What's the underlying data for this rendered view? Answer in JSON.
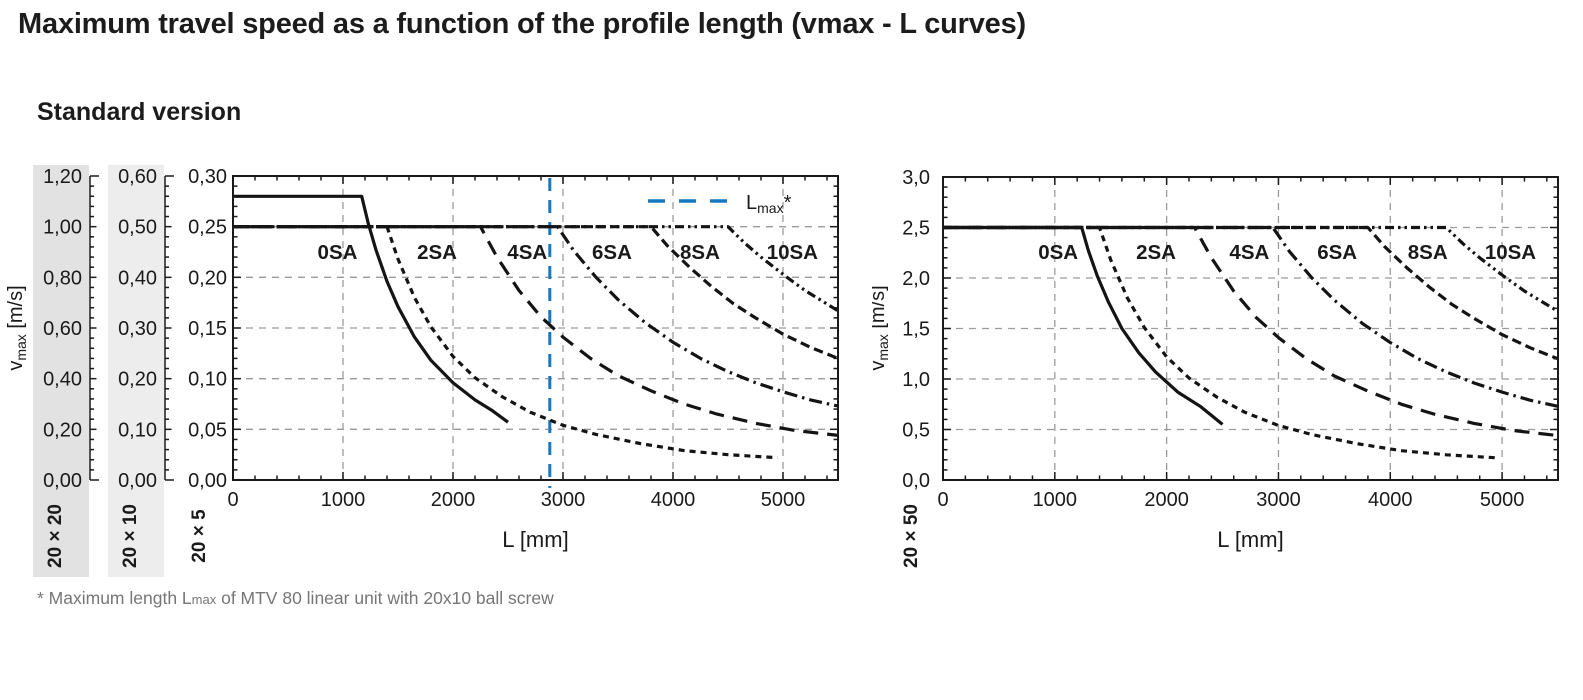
{
  "page": {
    "title": "Maximum travel speed as a function of the profile length (vmax - L curves)",
    "subtitle": "Standard version",
    "footnote": {
      "pre": "* Maximum length L",
      "sub": "max",
      "post": " of MTV 80 linear unit with 20x10 ball screw"
    }
  },
  "colors": {
    "curve": "#141414",
    "grid": "#9b9b9b",
    "frame": "#1a1a1a",
    "accent_blue": "#1878be",
    "strip_dark": "#e2e2e2",
    "strip_light": "#ededed",
    "footnote_gray": "#767676"
  },
  "chart_data": [
    {
      "id": "left",
      "type": "line",
      "xlabel": "L [mm]",
      "ylabel": {
        "pre": "v",
        "sub": "max",
        "post": " [m/s]"
      },
      "xlim": [
        0,
        5500
      ],
      "xticks": [
        0,
        1000,
        2000,
        3000,
        4000,
        5000
      ],
      "xtick_labels": [
        "0",
        "1000",
        "2000",
        "3000",
        "4000",
        "5000"
      ],
      "x_minor_step": 200,
      "grid": true,
      "primary_ymax": 0.3,
      "scales": [
        {
          "label": "20 × 20",
          "ymax": 1.2,
          "tick_labels": [
            "1,20",
            "1,00",
            "0,80",
            "0,60",
            "0,40",
            "0,20",
            "0,00"
          ],
          "strip": "dark"
        },
        {
          "label": "20 × 10",
          "ymax": 0.6,
          "tick_labels": [
            "0,60",
            "0,50",
            "0,40",
            "0,30",
            "0,20",
            "0,10",
            "0,00"
          ],
          "strip": "light"
        },
        {
          "label": "20 × 5",
          "ymax": 0.3,
          "tick_labels": [
            "0,30",
            "0,25",
            "0,20",
            "0,15",
            "0,10",
            "0,05",
            "0,00"
          ],
          "strip": null
        }
      ],
      "vline": {
        "L": 2880,
        "legend_label": {
          "pre": "L",
          "sub": "max",
          "post": "*"
        }
      },
      "series": [
        {
          "name": "0SA",
          "dash": "solid",
          "label_L": 950,
          "points": [
            [
              0,
              0.28
            ],
            [
              1170,
              0.28
            ],
            [
              1230,
              0.253
            ],
            [
              1300,
              0.227
            ],
            [
              1400,
              0.196
            ],
            [
              1500,
              0.171
            ],
            [
              1650,
              0.141
            ],
            [
              1800,
              0.118
            ],
            [
              2000,
              0.096
            ],
            [
              2200,
              0.079
            ],
            [
              2350,
              0.069
            ],
            [
              2500,
              0.057
            ]
          ]
        },
        {
          "name": "2SA",
          "dash": "short-dash",
          "label_L": 1855,
          "points": [
            [
              0,
              0.25
            ],
            [
              1400,
              0.25
            ],
            [
              1500,
              0.218
            ],
            [
              1650,
              0.18
            ],
            [
              1800,
              0.151
            ],
            [
              2000,
              0.122
            ],
            [
              2200,
              0.101
            ],
            [
              2450,
              0.082
            ],
            [
              2700,
              0.067
            ],
            [
              3000,
              0.054
            ],
            [
              3300,
              0.045
            ],
            [
              3700,
              0.036
            ],
            [
              4100,
              0.029
            ],
            [
              4500,
              0.025
            ],
            [
              4950,
              0.022
            ]
          ]
        },
        {
          "name": "4SA",
          "dash": "long-dash",
          "label_L": 2675,
          "points": [
            [
              0,
              0.25
            ],
            [
              2250,
              0.25
            ],
            [
              2400,
              0.22
            ],
            [
              2600,
              0.187
            ],
            [
              2800,
              0.161
            ],
            [
              3000,
              0.141
            ],
            [
              3250,
              0.12
            ],
            [
              3500,
              0.103
            ],
            [
              3800,
              0.088
            ],
            [
              4100,
              0.075
            ],
            [
              4400,
              0.065
            ],
            [
              4750,
              0.056
            ],
            [
              5100,
              0.049
            ],
            [
              5500,
              0.044
            ]
          ]
        },
        {
          "name": "6SA",
          "dash": "dash-dot",
          "label_L": 3445,
          "points": [
            [
              0,
              0.25
            ],
            [
              2950,
              0.25
            ],
            [
              3100,
              0.226
            ],
            [
              3300,
              0.2
            ],
            [
              3500,
              0.178
            ],
            [
              3750,
              0.155
            ],
            [
              4000,
              0.136
            ],
            [
              4250,
              0.12
            ],
            [
              4500,
              0.107
            ],
            [
              4750,
              0.096
            ],
            [
              5000,
              0.087
            ],
            [
              5250,
              0.079
            ],
            [
              5500,
              0.073
            ]
          ]
        },
        {
          "name": "8SA",
          "dash": "medium-dash",
          "label_L": 4245,
          "points": [
            [
              0,
              0.25
            ],
            [
              3800,
              0.25
            ],
            [
              3950,
              0.231
            ],
            [
              4150,
              0.21
            ],
            [
              4350,
              0.191
            ],
            [
              4550,
              0.174
            ],
            [
              4750,
              0.16
            ],
            [
              5000,
              0.144
            ],
            [
              5250,
              0.131
            ],
            [
              5500,
              0.12
            ]
          ]
        },
        {
          "name": "10SA",
          "dash": "dash-dot-dot",
          "label_L": 5085,
          "points": [
            [
              0,
              0.25
            ],
            [
              4500,
              0.25
            ],
            [
              4650,
              0.234
            ],
            [
              4800,
              0.22
            ],
            [
              5000,
              0.203
            ],
            [
              5200,
              0.187
            ],
            [
              5350,
              0.177
            ],
            [
              5500,
              0.167
            ]
          ]
        }
      ]
    },
    {
      "id": "right",
      "type": "line",
      "xlabel": "L [mm]",
      "ylabel": {
        "pre": "v",
        "sub": "max",
        "post": " [m/s]"
      },
      "xlim": [
        0,
        5500
      ],
      "xticks": [
        0,
        1000,
        2000,
        3000,
        4000,
        5000
      ],
      "xtick_labels": [
        "0",
        "1000",
        "2000",
        "3000",
        "4000",
        "5000"
      ],
      "x_minor_step": 200,
      "grid": true,
      "primary_ymax": 3.0,
      "scales": [
        {
          "label": "20 × 50",
          "ymax": 3.0,
          "tick_labels": [
            "3,0",
            "2,5",
            "2,0",
            "1,5",
            "1,0",
            "0,5",
            "0,0"
          ],
          "strip": null
        }
      ],
      "vline": null,
      "series": [
        {
          "name": "0SA",
          "dash": "solid",
          "label_L": 1030,
          "points": [
            [
              0,
              2.5
            ],
            [
              1240,
              2.5
            ],
            [
              1300,
              2.27
            ],
            [
              1380,
              2.02
            ],
            [
              1480,
              1.76
            ],
            [
              1600,
              1.5
            ],
            [
              1750,
              1.26
            ],
            [
              1900,
              1.07
            ],
            [
              2100,
              0.87
            ],
            [
              2300,
              0.73
            ],
            [
              2500,
              0.55
            ]
          ]
        },
        {
          "name": "2SA",
          "dash": "short-dash",
          "label_L": 1905,
          "points": [
            [
              0,
              2.5
            ],
            [
              1400,
              2.5
            ],
            [
              1500,
              2.18
            ],
            [
              1650,
              1.8
            ],
            [
              1800,
              1.51
            ],
            [
              2000,
              1.22
            ],
            [
              2200,
              1.01
            ],
            [
              2450,
              0.82
            ],
            [
              2700,
              0.67
            ],
            [
              3000,
              0.54
            ],
            [
              3300,
              0.45
            ],
            [
              3700,
              0.36
            ],
            [
              4100,
              0.29
            ],
            [
              4500,
              0.25
            ],
            [
              4950,
              0.22
            ]
          ]
        },
        {
          "name": "4SA",
          "dash": "long-dash",
          "label_L": 2740,
          "points": [
            [
              0,
              2.5
            ],
            [
              2250,
              2.5
            ],
            [
              2400,
              2.2
            ],
            [
              2600,
              1.87
            ],
            [
              2800,
              1.61
            ],
            [
              3000,
              1.41
            ],
            [
              3250,
              1.2
            ],
            [
              3500,
              1.03
            ],
            [
              3800,
              0.88
            ],
            [
              4100,
              0.75
            ],
            [
              4400,
              0.65
            ],
            [
              4750,
              0.56
            ],
            [
              5100,
              0.49
            ],
            [
              5500,
              0.44
            ]
          ]
        },
        {
          "name": "6SA",
          "dash": "dash-dot",
          "label_L": 3525,
          "points": [
            [
              0,
              2.5
            ],
            [
              2950,
              2.5
            ],
            [
              3100,
              2.26
            ],
            [
              3300,
              2.0
            ],
            [
              3500,
              1.78
            ],
            [
              3750,
              1.55
            ],
            [
              4000,
              1.36
            ],
            [
              4250,
              1.2
            ],
            [
              4500,
              1.07
            ],
            [
              4750,
              0.96
            ],
            [
              5000,
              0.87
            ],
            [
              5250,
              0.79
            ],
            [
              5500,
              0.73
            ]
          ]
        },
        {
          "name": "8SA",
          "dash": "medium-dash",
          "label_L": 4335,
          "points": [
            [
              0,
              2.5
            ],
            [
              3800,
              2.5
            ],
            [
              3950,
              2.31
            ],
            [
              4150,
              2.1
            ],
            [
              4350,
              1.91
            ],
            [
              4550,
              1.74
            ],
            [
              4750,
              1.6
            ],
            [
              5000,
              1.44
            ],
            [
              5250,
              1.31
            ],
            [
              5500,
              1.2
            ]
          ]
        },
        {
          "name": "10SA",
          "dash": "dash-dot-dot",
          "label_L": 5075,
          "points": [
            [
              0,
              2.5
            ],
            [
              4500,
              2.5
            ],
            [
              4650,
              2.34
            ],
            [
              4800,
              2.2
            ],
            [
              5000,
              2.03
            ],
            [
              5200,
              1.87
            ],
            [
              5350,
              1.77
            ],
            [
              5500,
              1.67
            ]
          ]
        }
      ]
    }
  ]
}
